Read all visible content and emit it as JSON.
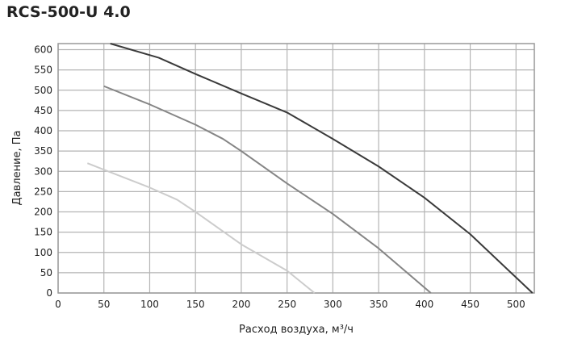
{
  "chart_data": {
    "type": "line",
    "title": "RCS-500-U 4.0",
    "xlabel": "Расход воздуха, м³/ч",
    "ylabel": "Давление, Па",
    "xlim": [
      0,
      520
    ],
    "ylim": [
      0,
      615
    ],
    "xticks": [
      0,
      50,
      100,
      150,
      200,
      250,
      300,
      350,
      400,
      450,
      500
    ],
    "yticks": [
      0,
      50,
      100,
      150,
      200,
      250,
      300,
      350,
      400,
      450,
      500,
      550,
      600
    ],
    "grid": true,
    "series": [
      {
        "color": "#3a3a3a",
        "x": [
          57,
          110,
          150,
          200,
          250,
          300,
          350,
          400,
          450,
          518
        ],
        "y": [
          615,
          580,
          540,
          492,
          445,
          380,
          312,
          235,
          145,
          0
        ]
      },
      {
        "color": "#858585",
        "x": [
          50,
          100,
          150,
          180,
          200,
          250,
          300,
          350,
          407
        ],
        "y": [
          510,
          465,
          415,
          380,
          350,
          270,
          195,
          110,
          0
        ]
      },
      {
        "color": "#cccccc",
        "x": [
          32,
          100,
          130,
          150,
          200,
          250,
          280
        ],
        "y": [
          320,
          260,
          230,
          200,
          120,
          55,
          0
        ]
      }
    ]
  }
}
